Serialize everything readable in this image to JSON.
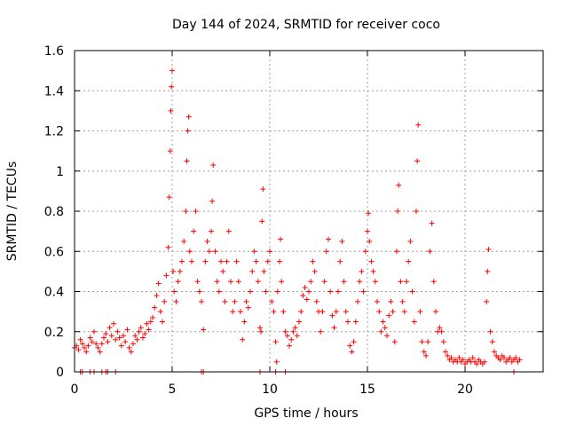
{
  "chart_data": {
    "type": "scatter",
    "title": "Day 144 of 2024, SRMTID for receiver coco",
    "xlabel": "GPS time / hours",
    "ylabel": "SRMTID / TECUs",
    "xlim": [
      0,
      24
    ],
    "ylim": [
      0,
      1.6
    ],
    "xticks": [
      0,
      5,
      10,
      15,
      20
    ],
    "yticks": [
      0,
      0.2,
      0.4,
      0.6,
      0.8,
      1,
      1.2,
      1.4,
      1.6
    ],
    "xtick_labels": [
      "0",
      "5",
      "10",
      "15",
      "20"
    ],
    "ytick_labels": [
      "0",
      "0.2",
      "0.4",
      "0.6",
      "0.8",
      "1",
      "1.2",
      "1.4",
      "1.6"
    ],
    "grid": true,
    "marker": "+",
    "series_color": "#ff0000",
    "series": [
      {
        "name": "SRMTID",
        "points": [
          [
            0.0,
            0.12
          ],
          [
            0.1,
            0.13
          ],
          [
            0.2,
            0.11
          ],
          [
            0.3,
            0.16
          ],
          [
            0.4,
            0.14
          ],
          [
            0.5,
            0.12
          ],
          [
            0.6,
            0.1
          ],
          [
            0.7,
            0.13
          ],
          [
            0.8,
            0.17
          ],
          [
            0.9,
            0.15
          ],
          [
            1.0,
            0.2
          ],
          [
            1.1,
            0.14
          ],
          [
            1.2,
            0.12
          ],
          [
            1.3,
            0.1
          ],
          [
            1.4,
            0.14
          ],
          [
            1.5,
            0.17
          ],
          [
            1.6,
            0.19
          ],
          [
            1.7,
            0.15
          ],
          [
            1.8,
            0.22
          ],
          [
            1.9,
            0.18
          ],
          [
            2.0,
            0.24
          ],
          [
            2.1,
            0.16
          ],
          [
            2.2,
            0.2
          ],
          [
            2.3,
            0.17
          ],
          [
            2.4,
            0.13
          ],
          [
            2.5,
            0.18
          ],
          [
            2.6,
            0.15
          ],
          [
            2.7,
            0.21
          ],
          [
            2.8,
            0.12
          ],
          [
            2.9,
            0.1
          ],
          [
            3.0,
            0.14
          ],
          [
            3.1,
            0.18
          ],
          [
            3.2,
            0.16
          ],
          [
            3.3,
            0.2
          ],
          [
            3.4,
            0.22
          ],
          [
            3.5,
            0.17
          ],
          [
            3.6,
            0.19
          ],
          [
            3.7,
            0.24
          ],
          [
            3.8,
            0.21
          ],
          [
            3.9,
            0.25
          ],
          [
            4.0,
            0.27
          ],
          [
            4.1,
            0.32
          ],
          [
            4.2,
            0.38
          ],
          [
            4.3,
            0.44
          ],
          [
            4.4,
            0.3
          ],
          [
            4.5,
            0.25
          ],
          [
            4.6,
            0.35
          ],
          [
            4.7,
            0.48
          ],
          [
            4.8,
            0.62
          ],
          [
            4.85,
            0.87
          ],
          [
            4.9,
            1.1
          ],
          [
            4.93,
            1.3
          ],
          [
            4.96,
            1.42
          ],
          [
            5.0,
            1.5
          ],
          [
            5.05,
            0.5
          ],
          [
            5.1,
            0.4
          ],
          [
            5.2,
            0.35
          ],
          [
            5.3,
            0.45
          ],
          [
            5.4,
            0.5
          ],
          [
            5.5,
            0.55
          ],
          [
            5.6,
            0.65
          ],
          [
            5.7,
            0.8
          ],
          [
            5.75,
            1.05
          ],
          [
            5.8,
            1.2
          ],
          [
            5.85,
            1.27
          ],
          [
            5.9,
            0.6
          ],
          [
            6.0,
            0.55
          ],
          [
            6.1,
            0.7
          ],
          [
            6.2,
            0.8
          ],
          [
            6.3,
            0.45
          ],
          [
            6.4,
            0.4
          ],
          [
            6.5,
            0.35
          ],
          [
            6.6,
            0.21
          ],
          [
            6.7,
            0.55
          ],
          [
            6.8,
            0.65
          ],
          [
            6.9,
            0.6
          ],
          [
            7.0,
            0.7
          ],
          [
            7.05,
            0.85
          ],
          [
            7.1,
            1.03
          ],
          [
            7.2,
            0.6
          ],
          [
            7.3,
            0.45
          ],
          [
            7.4,
            0.4
          ],
          [
            7.5,
            0.55
          ],
          [
            7.6,
            0.5
          ],
          [
            7.7,
            0.35
          ],
          [
            7.8,
            0.55
          ],
          [
            7.9,
            0.7
          ],
          [
            8.0,
            0.45
          ],
          [
            8.1,
            0.3
          ],
          [
            8.2,
            0.35
          ],
          [
            8.3,
            0.55
          ],
          [
            8.4,
            0.45
          ],
          [
            8.5,
            0.3
          ],
          [
            8.6,
            0.16
          ],
          [
            8.7,
            0.25
          ],
          [
            8.8,
            0.35
          ],
          [
            8.9,
            0.32
          ],
          [
            9.0,
            0.4
          ],
          [
            9.1,
            0.5
          ],
          [
            9.2,
            0.6
          ],
          [
            9.3,
            0.55
          ],
          [
            9.4,
            0.45
          ],
          [
            9.5,
            0.22
          ],
          [
            9.55,
            0.2
          ],
          [
            9.6,
            0.75
          ],
          [
            9.65,
            0.91
          ],
          [
            9.7,
            0.5
          ],
          [
            9.8,
            0.4
          ],
          [
            9.9,
            0.55
          ],
          [
            10.0,
            0.6
          ],
          [
            10.1,
            0.35
          ],
          [
            10.2,
            0.3
          ],
          [
            10.3,
            0.15
          ],
          [
            10.35,
            0.05
          ],
          [
            10.4,
            0.4
          ],
          [
            10.5,
            0.55
          ],
          [
            10.55,
            0.66
          ],
          [
            10.6,
            0.45
          ],
          [
            10.7,
            0.3
          ],
          [
            10.8,
            0.2
          ],
          [
            10.9,
            0.18
          ],
          [
            11.0,
            0.13
          ],
          [
            11.1,
            0.16
          ],
          [
            11.2,
            0.2
          ],
          [
            11.3,
            0.22
          ],
          [
            11.4,
            0.18
          ],
          [
            11.5,
            0.25
          ],
          [
            11.6,
            0.3
          ],
          [
            11.7,
            0.38
          ],
          [
            11.8,
            0.42
          ],
          [
            11.9,
            0.36
          ],
          [
            12.0,
            0.4
          ],
          [
            12.1,
            0.45
          ],
          [
            12.2,
            0.55
          ],
          [
            12.3,
            0.5
          ],
          [
            12.4,
            0.35
          ],
          [
            12.5,
            0.3
          ],
          [
            12.6,
            0.2
          ],
          [
            12.7,
            0.3
          ],
          [
            12.8,
            0.45
          ],
          [
            12.9,
            0.6
          ],
          [
            13.0,
            0.66
          ],
          [
            13.1,
            0.4
          ],
          [
            13.2,
            0.28
          ],
          [
            13.3,
            0.22
          ],
          [
            13.4,
            0.3
          ],
          [
            13.5,
            0.4
          ],
          [
            13.6,
            0.55
          ],
          [
            13.7,
            0.65
          ],
          [
            13.8,
            0.45
          ],
          [
            13.9,
            0.3
          ],
          [
            14.0,
            0.25
          ],
          [
            14.1,
            0.13
          ],
          [
            14.2,
            0.1
          ],
          [
            14.3,
            0.15
          ],
          [
            14.4,
            0.25
          ],
          [
            14.5,
            0.35
          ],
          [
            14.6,
            0.45
          ],
          [
            14.7,
            0.5
          ],
          [
            14.8,
            0.4
          ],
          [
            14.9,
            0.6
          ],
          [
            15.0,
            0.7
          ],
          [
            15.05,
            0.79
          ],
          [
            15.1,
            0.65
          ],
          [
            15.2,
            0.55
          ],
          [
            15.3,
            0.5
          ],
          [
            15.4,
            0.45
          ],
          [
            15.5,
            0.35
          ],
          [
            15.6,
            0.3
          ],
          [
            15.7,
            0.2
          ],
          [
            15.8,
            0.25
          ],
          [
            15.9,
            0.22
          ],
          [
            16.0,
            0.18
          ],
          [
            16.1,
            0.28
          ],
          [
            16.2,
            0.35
          ],
          [
            16.3,
            0.3
          ],
          [
            16.4,
            0.15
          ],
          [
            16.5,
            0.6
          ],
          [
            16.55,
            0.8
          ],
          [
            16.6,
            0.93
          ],
          [
            16.7,
            0.45
          ],
          [
            16.8,
            0.35
          ],
          [
            16.9,
            0.3
          ],
          [
            17.0,
            0.45
          ],
          [
            17.1,
            0.55
          ],
          [
            17.2,
            0.65
          ],
          [
            17.3,
            0.4
          ],
          [
            17.4,
            0.25
          ],
          [
            17.5,
            0.8
          ],
          [
            17.55,
            1.05
          ],
          [
            17.6,
            1.23
          ],
          [
            17.7,
            0.3
          ],
          [
            17.8,
            0.15
          ],
          [
            17.9,
            0.1
          ],
          [
            18.0,
            0.08
          ],
          [
            18.1,
            0.15
          ],
          [
            18.2,
            0.6
          ],
          [
            18.3,
            0.74
          ],
          [
            18.4,
            0.45
          ],
          [
            18.5,
            0.3
          ],
          [
            18.6,
            0.2
          ],
          [
            18.7,
            0.22
          ],
          [
            18.8,
            0.2
          ],
          [
            18.9,
            0.15
          ],
          [
            19.0,
            0.1
          ],
          [
            19.1,
            0.08
          ],
          [
            19.2,
            0.06
          ],
          [
            19.3,
            0.07
          ],
          [
            19.4,
            0.05
          ],
          [
            19.5,
            0.06
          ],
          [
            19.6,
            0.05
          ],
          [
            19.7,
            0.07
          ],
          [
            19.8,
            0.05
          ],
          [
            19.9,
            0.06
          ],
          [
            20.0,
            0.04
          ],
          [
            20.1,
            0.05
          ],
          [
            20.2,
            0.06
          ],
          [
            20.3,
            0.05
          ],
          [
            20.4,
            0.07
          ],
          [
            20.5,
            0.05
          ],
          [
            20.6,
            0.04
          ],
          [
            20.7,
            0.06
          ],
          [
            20.8,
            0.05
          ],
          [
            20.9,
            0.04
          ],
          [
            21.0,
            0.05
          ],
          [
            21.1,
            0.35
          ],
          [
            21.15,
            0.5
          ],
          [
            21.2,
            0.61
          ],
          [
            21.3,
            0.2
          ],
          [
            21.4,
            0.15
          ],
          [
            21.5,
            0.1
          ],
          [
            21.6,
            0.08
          ],
          [
            21.7,
            0.07
          ],
          [
            21.8,
            0.06
          ],
          [
            21.9,
            0.08
          ],
          [
            22.0,
            0.07
          ],
          [
            22.1,
            0.05
          ],
          [
            22.2,
            0.06
          ],
          [
            22.3,
            0.07
          ],
          [
            22.4,
            0.05
          ],
          [
            22.5,
            0.06
          ],
          [
            22.6,
            0.07
          ],
          [
            22.7,
            0.05
          ],
          [
            22.8,
            0.06
          ]
        ]
      }
    ],
    "baseline_markers_x": [
      0.3,
      0.4,
      0.8,
      1.0,
      1.4,
      1.6,
      1.7,
      2.1,
      6.5,
      6.6,
      9.5,
      10.3,
      10.8,
      22.5
    ]
  }
}
